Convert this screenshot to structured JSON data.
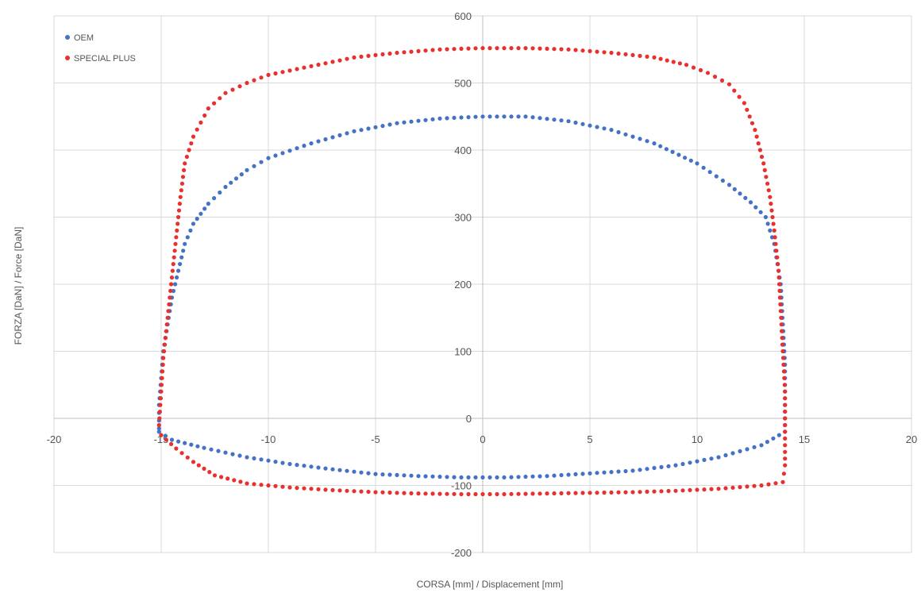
{
  "chart_data": {
    "type": "scatter",
    "xlabel": "CORSA [mm] / Displacement [mm]",
    "ylabel": "FORZA [DaN] / Force [DaN]",
    "xlim": [
      -20,
      20
    ],
    "ylim": [
      -200,
      600
    ],
    "x_ticks": [
      -20,
      -15,
      -10,
      -5,
      0,
      5,
      10,
      15,
      20
    ],
    "x_tick_labels": [
      "-20",
      "-15",
      "-10",
      "-5",
      "0",
      "5",
      "10",
      "15",
      "20"
    ],
    "y_ticks": [
      -200,
      -100,
      0,
      100,
      200,
      300,
      400,
      500,
      600
    ],
    "y_tick_labels": [
      "-200",
      "-100",
      "0",
      "100",
      "200",
      "300",
      "400",
      "500",
      "600"
    ],
    "grid": true,
    "legend_position": "top-left",
    "series": [
      {
        "name": "OEM",
        "color": "#4472c4",
        "points": [
          [
            -15.1,
            -15
          ],
          [
            -15.1,
            20
          ],
          [
            -15.0,
            60
          ],
          [
            -14.9,
            100
          ],
          [
            -14.7,
            140
          ],
          [
            -14.5,
            180
          ],
          [
            -14.2,
            220
          ],
          [
            -13.9,
            260
          ],
          [
            -13.5,
            290
          ],
          [
            -12.8,
            320
          ],
          [
            -12.0,
            345
          ],
          [
            -11.0,
            370
          ],
          [
            -10.0,
            388
          ],
          [
            -8.0,
            410
          ],
          [
            -6.0,
            428
          ],
          [
            -4.0,
            440
          ],
          [
            -2.0,
            447
          ],
          [
            0.0,
            450
          ],
          [
            2.0,
            450
          ],
          [
            4.0,
            443
          ],
          [
            6.0,
            430
          ],
          [
            8.0,
            410
          ],
          [
            10.0,
            380
          ],
          [
            11.5,
            348
          ],
          [
            12.5,
            322
          ],
          [
            13.2,
            300
          ],
          [
            13.6,
            260
          ],
          [
            13.9,
            200
          ],
          [
            14.0,
            140
          ],
          [
            14.1,
            80
          ],
          [
            14.1,
            20
          ],
          [
            14.1,
            -20
          ],
          [
            13.0,
            -40
          ],
          [
            11.0,
            -58
          ],
          [
            9.0,
            -70
          ],
          [
            7.0,
            -78
          ],
          [
            5.0,
            -82
          ],
          [
            3.0,
            -86
          ],
          [
            1.0,
            -88
          ],
          [
            -1.0,
            -88
          ],
          [
            -3.0,
            -86
          ],
          [
            -5.0,
            -83
          ],
          [
            -7.0,
            -76
          ],
          [
            -9.0,
            -68
          ],
          [
            -11.0,
            -58
          ],
          [
            -13.0,
            -44
          ],
          [
            -14.5,
            -32
          ],
          [
            -15.1,
            -20
          ]
        ]
      },
      {
        "name": "SPECIAL PLUS",
        "color": "#e8312f",
        "points": [
          [
            -15.1,
            -10
          ],
          [
            -15.0,
            40
          ],
          [
            -14.9,
            90
          ],
          [
            -14.7,
            150
          ],
          [
            -14.5,
            210
          ],
          [
            -14.3,
            270
          ],
          [
            -14.1,
            330
          ],
          [
            -13.9,
            380
          ],
          [
            -13.5,
            420
          ],
          [
            -12.8,
            462
          ],
          [
            -12.0,
            485
          ],
          [
            -11.0,
            500
          ],
          [
            -10.0,
            512
          ],
          [
            -8.0,
            525
          ],
          [
            -6.0,
            538
          ],
          [
            -4.0,
            545
          ],
          [
            -2.0,
            550
          ],
          [
            0.0,
            552
          ],
          [
            2.0,
            552
          ],
          [
            4.0,
            550
          ],
          [
            6.0,
            545
          ],
          [
            8.0,
            538
          ],
          [
            9.5,
            527
          ],
          [
            10.5,
            515
          ],
          [
            11.5,
            498
          ],
          [
            12.2,
            470
          ],
          [
            12.7,
            430
          ],
          [
            13.1,
            380
          ],
          [
            13.4,
            330
          ],
          [
            13.6,
            280
          ],
          [
            13.8,
            220
          ],
          [
            13.9,
            160
          ],
          [
            14.0,
            100
          ],
          [
            14.1,
            40
          ],
          [
            14.1,
            -20
          ],
          [
            14.1,
            -70
          ],
          [
            14.0,
            -95
          ],
          [
            13.0,
            -100
          ],
          [
            11.0,
            -105
          ],
          [
            9.0,
            -108
          ],
          [
            7.0,
            -110
          ],
          [
            5.0,
            -111
          ],
          [
            3.0,
            -112
          ],
          [
            1.0,
            -113
          ],
          [
            -1.0,
            -113
          ],
          [
            -3.0,
            -112
          ],
          [
            -5.0,
            -110
          ],
          [
            -7.0,
            -107
          ],
          [
            -9.0,
            -103
          ],
          [
            -11.0,
            -97
          ],
          [
            -12.5,
            -85
          ],
          [
            -13.5,
            -65
          ],
          [
            -14.3,
            -45
          ],
          [
            -15.0,
            -25
          ]
        ]
      }
    ]
  }
}
